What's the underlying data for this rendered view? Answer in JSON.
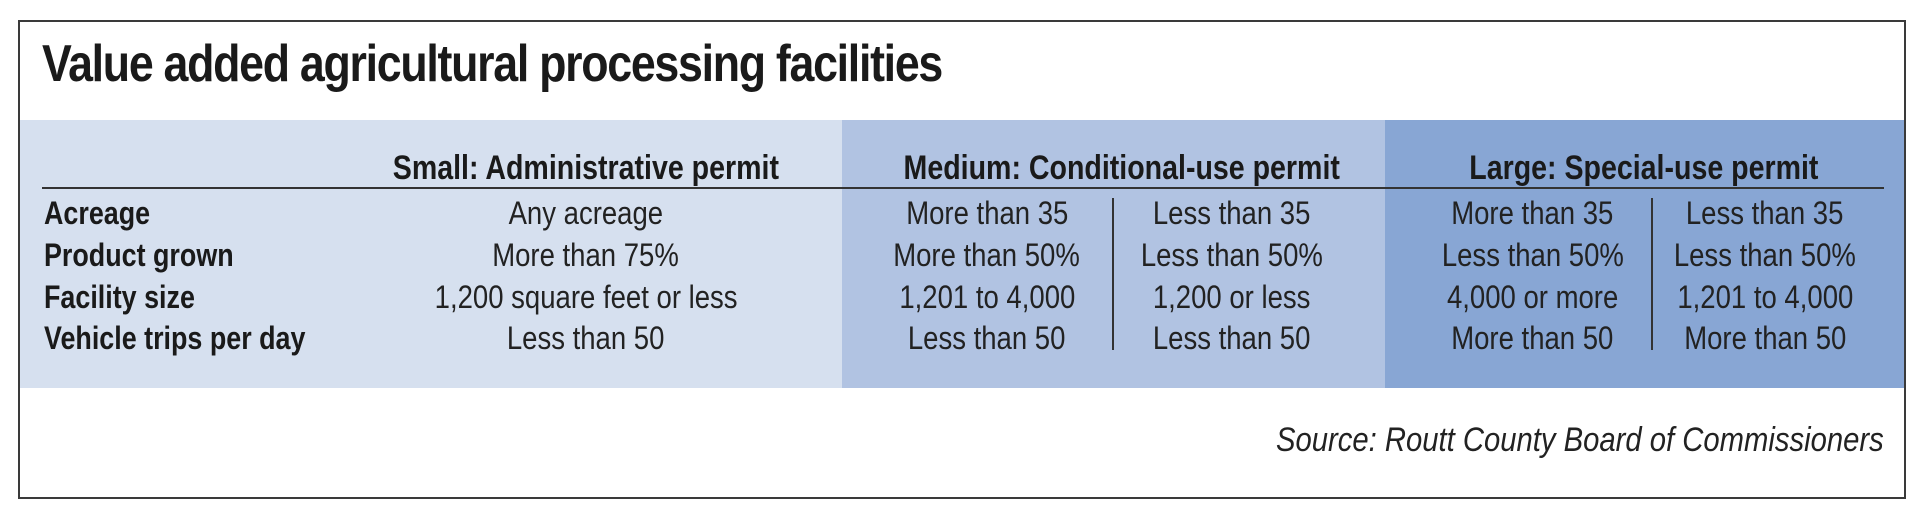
{
  "title": "Value added agricultural processing facilities",
  "source": "Source: Routt County Board of Commissioners",
  "colors": {
    "small": "#d6e0ef",
    "medium": "#b1c3e2",
    "large": "#88a6d4"
  },
  "chart_data": {
    "type": "table",
    "title": "Value added agricultural processing facilities",
    "tiers": [
      "Small: Administrative permit",
      "Medium: Conditional-use permit",
      "Large: Special-use permit"
    ],
    "columns": [
      "Small: Administrative permit",
      "Medium: Conditional-use permit (acreage more than 35)",
      "Medium: Conditional-use permit (acreage less than 35)",
      "Large: Special-use permit (acreage more than 35)",
      "Large: Special-use permit (acreage less than 35)"
    ],
    "rows": [
      {
        "label": "Acreage",
        "cells": [
          "Any acreage",
          "More than 35",
          "Less than 35",
          "More than 35",
          "Less than 35"
        ]
      },
      {
        "label": "Product grown",
        "cells": [
          "More than 75%",
          "More than 50%",
          "Less than 50%",
          "Less than 50%",
          "Less than 50%"
        ]
      },
      {
        "label": "Facility size",
        "cells": [
          "1,200 square feet or less",
          "1,201 to 4,000",
          "1,200 or less",
          "4,000 or more",
          "1,201 to 4,000"
        ]
      },
      {
        "label": "Vehicle trips per day",
        "cells": [
          "Less than 50",
          "Less than 50",
          "Less than 50",
          "More than 50",
          "More than 50"
        ]
      }
    ],
    "source": "Source: Routt County Board of Commissioners"
  }
}
